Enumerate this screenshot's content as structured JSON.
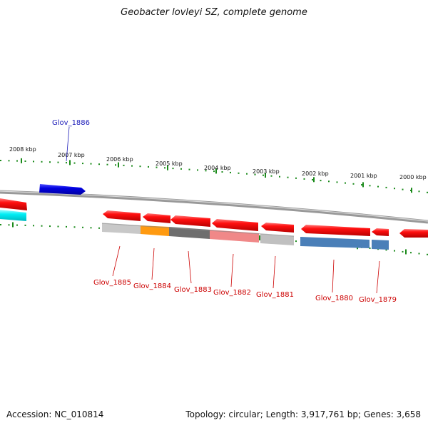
{
  "header": {
    "title": "Geobacter lovleyi SZ, complete genome"
  },
  "footer": {
    "accession": "Accession: NC_010814",
    "summary": "Topology: circular; Length: 3,917,761 bp; Genes: 3,658"
  },
  "scale_labels": [
    "2008 kbp",
    "2007 kbp",
    "2006 kbp",
    "2005 kbp",
    "2004 kbp",
    "2003 kbp",
    "2002 kbp",
    "2001 kbp",
    "2000 kbp"
  ],
  "gene_labels": [
    {
      "text": "Glov_1886",
      "color": "#1a1ab8"
    },
    {
      "text": "Glov_1885",
      "color": "#cc0000"
    },
    {
      "text": "Glov_1884",
      "color": "#cc0000"
    },
    {
      "text": "Glov_1883",
      "color": "#cc0000"
    },
    {
      "text": "Glov_1882",
      "color": "#cc0000"
    },
    {
      "text": "Glov_1881",
      "color": "#cc0000"
    },
    {
      "text": "Glov_1880",
      "color": "#cc0000"
    },
    {
      "text": "Glov_1879",
      "color": "#cc0000"
    }
  ],
  "colors": {
    "cds": "#ee0000",
    "forward_gene": "#0000dd",
    "cyan_gene": "#00e5ee",
    "tick": "#1a8a1a",
    "backbone": "#888888"
  }
}
